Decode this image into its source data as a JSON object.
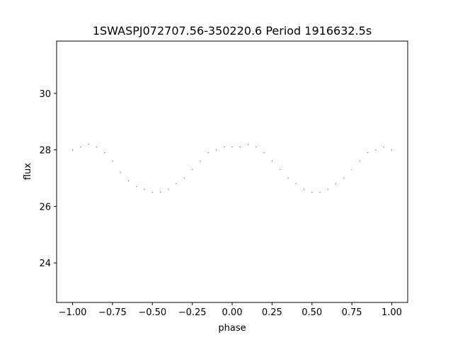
{
  "chart_data": {
    "type": "scatter",
    "title": "1SWASPJ072707.56-350220.6 Period 1916632.5s",
    "xlabel": "phase",
    "ylabel": "flux",
    "xlim": [
      -1.1,
      1.1
    ],
    "ylim": [
      22.6,
      31.85
    ],
    "xticks": [
      -1.0,
      -0.75,
      -0.5,
      -0.25,
      0.0,
      0.25,
      0.5,
      0.75,
      1.0
    ],
    "xtick_labels": [
      "−1.00",
      "−0.75",
      "−0.50",
      "−0.25",
      "0.00",
      "0.25",
      "0.50",
      "0.75",
      "1.00"
    ],
    "yticks": [
      24,
      26,
      28,
      30
    ],
    "ytick_labels": [
      "24",
      "26",
      "28",
      "30"
    ],
    "grid": false,
    "marker_color": "#1f77b4",
    "series": [
      {
        "x": [
          -1.0,
          -0.95,
          -0.9,
          -0.85,
          -0.8,
          -0.75,
          -0.7,
          -0.65,
          -0.6,
          -0.55,
          -0.5,
          -0.45,
          -0.4,
          -0.35,
          -0.3,
          -0.25,
          -0.2,
          -0.15,
          -0.1,
          -0.05,
          0.0,
          0.05,
          0.1,
          0.15,
          0.2,
          0.25,
          0.3,
          0.35,
          0.4,
          0.45,
          0.5,
          0.55,
          0.6,
          0.65,
          0.7,
          0.75,
          0.8,
          0.85,
          0.9,
          0.95,
          1.0
        ],
        "y": [
          28.0,
          28.1,
          28.2,
          28.1,
          27.9,
          27.6,
          27.2,
          26.9,
          26.7,
          26.6,
          26.5,
          26.5,
          26.6,
          26.8,
          27.0,
          27.3,
          27.6,
          27.9,
          28.0,
          28.1,
          28.1,
          28.1,
          28.2,
          28.1,
          27.9,
          27.6,
          27.3,
          27.0,
          26.8,
          26.6,
          26.5,
          26.5,
          26.6,
          26.8,
          27.0,
          27.3,
          27.6,
          27.9,
          28.0,
          28.1,
          28.0
        ]
      }
    ]
  }
}
